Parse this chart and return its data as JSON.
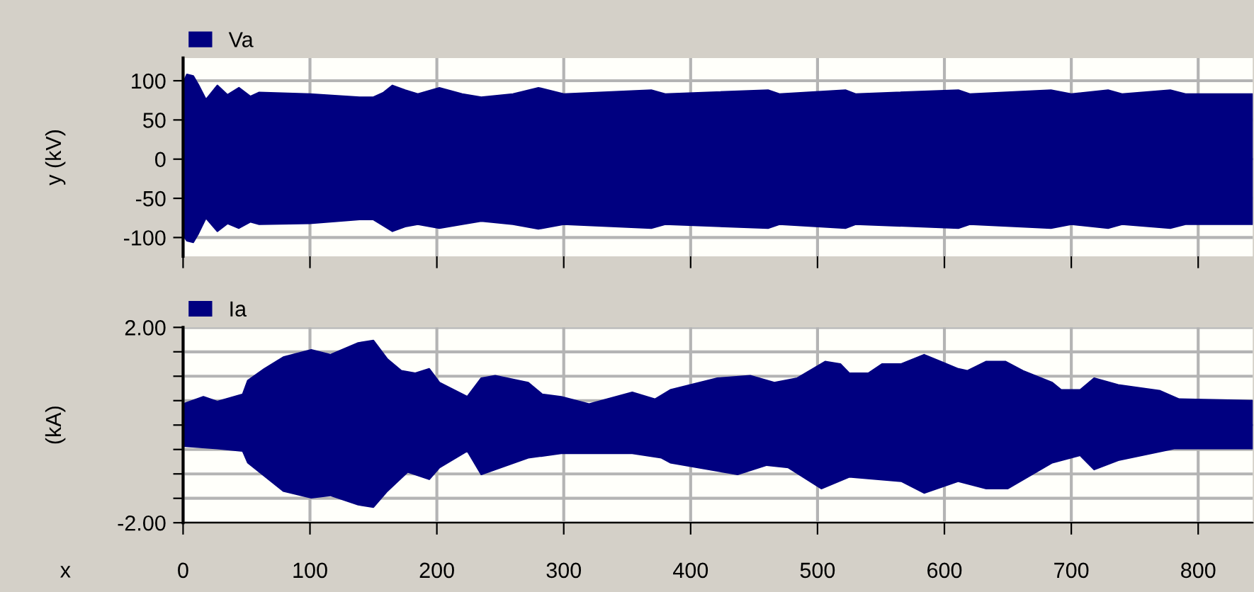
{
  "chart_data": [
    {
      "type": "area",
      "ylabel": "y (kV)",
      "xlim": [
        0,
        843
      ],
      "ylim": [
        -124,
        129
      ],
      "xticks": [
        0,
        100,
        200,
        300,
        400,
        500,
        600,
        700,
        800
      ],
      "yticks": [
        100,
        50,
        0,
        -50,
        -100
      ],
      "tick_labels": "y",
      "grid": true,
      "legend": "top left",
      "series": [
        {
          "name": "Va",
          "color": "#000080",
          "x": [
            0,
            3,
            8,
            12,
            18,
            27,
            35,
            44,
            53,
            60,
            100,
            139,
            150,
            158,
            165,
            175,
            185,
            202,
            220,
            235,
            260,
            280,
            300,
            369,
            380,
            461,
            470,
            522,
            530,
            611,
            620,
            684,
            700,
            729,
            740,
            778,
            790,
            843
          ],
          "values": [
            97,
            108,
            106,
            95,
            76,
            94,
            82,
            91,
            80,
            85,
            83,
            79,
            79,
            85,
            94,
            88,
            83,
            91,
            83,
            79,
            83,
            91,
            83,
            88,
            83,
            88,
            83,
            88,
            83,
            88,
            83,
            88,
            83,
            88,
            83,
            88,
            83,
            83
          ]
        },
        {
          "color": "#000080",
          "x": [
            0,
            3,
            8,
            12,
            18,
            27,
            35,
            44,
            53,
            60,
            100,
            139,
            150,
            158,
            165,
            175,
            185,
            202,
            220,
            235,
            260,
            280,
            300,
            369,
            380,
            461,
            470,
            522,
            530,
            611,
            620,
            684,
            700,
            729,
            740,
            778,
            790,
            843
          ],
          "values": [
            -97,
            -104,
            -106,
            -95,
            -75,
            -92,
            -82,
            -88,
            -80,
            -83,
            -82,
            -77,
            -77,
            -85,
            -92,
            -86,
            -83,
            -88,
            -83,
            -79,
            -83,
            -89,
            -83,
            -88,
            -83,
            -88,
            -83,
            -88,
            -83,
            -88,
            -83,
            -88,
            -83,
            -88,
            -83,
            -88,
            -83,
            -83
          ]
        }
      ]
    },
    {
      "type": "area",
      "ylabel": "(kA)",
      "xlabel": "x",
      "xlim": [
        0,
        843
      ],
      "ylim": [
        -2,
        2
      ],
      "xticks": [
        0,
        100,
        200,
        300,
        400,
        500,
        600,
        700,
        800
      ],
      "yticks": [
        {
          "value": 2,
          "label": "2.00"
        },
        {
          "value": 1.5,
          "label": null
        },
        {
          "value": 1.0,
          "label": null
        },
        {
          "value": 0.5,
          "label": null
        },
        {
          "value": 0,
          "label": null
        },
        {
          "value": -0.5,
          "label": null
        },
        {
          "value": -1.0,
          "label": null
        },
        {
          "value": -1.5,
          "label": null
        },
        {
          "value": -2,
          "label": "-2.00"
        }
      ],
      "grid": true,
      "legend": "top left",
      "series": [
        {
          "name": "Ia",
          "color": "#000080",
          "x": [
            0,
            16,
            27,
            47,
            51,
            64,
            79,
            101,
            116,
            138,
            150,
            161,
            172,
            183,
            194,
            202,
            224,
            235,
            246,
            272,
            283,
            298,
            320,
            354,
            372,
            384,
            421,
            447,
            466,
            484,
            506,
            518,
            525,
            540,
            551,
            566,
            584,
            611,
            618,
            633,
            648,
            662,
            685,
            692,
            707,
            718,
            737,
            770,
            785,
            843
          ],
          "values": [
            0.43,
            0.58,
            0.48,
            0.63,
            0.91,
            1.15,
            1.39,
            1.54,
            1.44,
            1.68,
            1.73,
            1.35,
            1.11,
            1.06,
            1.15,
            0.87,
            0.58,
            0.96,
            1.01,
            0.87,
            0.63,
            0.58,
            0.43,
            0.67,
            0.53,
            0.72,
            0.96,
            1.01,
            0.87,
            0.96,
            1.3,
            1.25,
            1.06,
            1.06,
            1.25,
            1.25,
            1.44,
            1.15,
            1.11,
            1.3,
            1.3,
            1.11,
            0.87,
            0.72,
            0.72,
            0.96,
            0.82,
            0.7,
            0.53,
            0.5
          ]
        },
        {
          "color": "#000080",
          "x": [
            0,
            27,
            47,
            51,
            79,
            101,
            116,
            138,
            150,
            161,
            177,
            194,
            202,
            224,
            235,
            272,
            298,
            354,
            377,
            384,
            437,
            460,
            477,
            503,
            525,
            566,
            584,
            611,
            633,
            650,
            685,
            707,
            718,
            737,
            781,
            843
          ],
          "values": [
            -0.43,
            -0.48,
            -0.53,
            -0.77,
            -1.35,
            -1.49,
            -1.44,
            -1.63,
            -1.68,
            -1.35,
            -0.96,
            -1.11,
            -0.87,
            -0.53,
            -1.01,
            -0.67,
            -0.58,
            -0.58,
            -0.67,
            -0.77,
            -1.01,
            -0.82,
            -0.87,
            -1.3,
            -1.06,
            -1.15,
            -1.39,
            -1.15,
            -1.3,
            -1.3,
            -0.77,
            -0.62,
            -0.91,
            -0.72,
            -0.48,
            -0.48
          ]
        }
      ]
    }
  ]
}
